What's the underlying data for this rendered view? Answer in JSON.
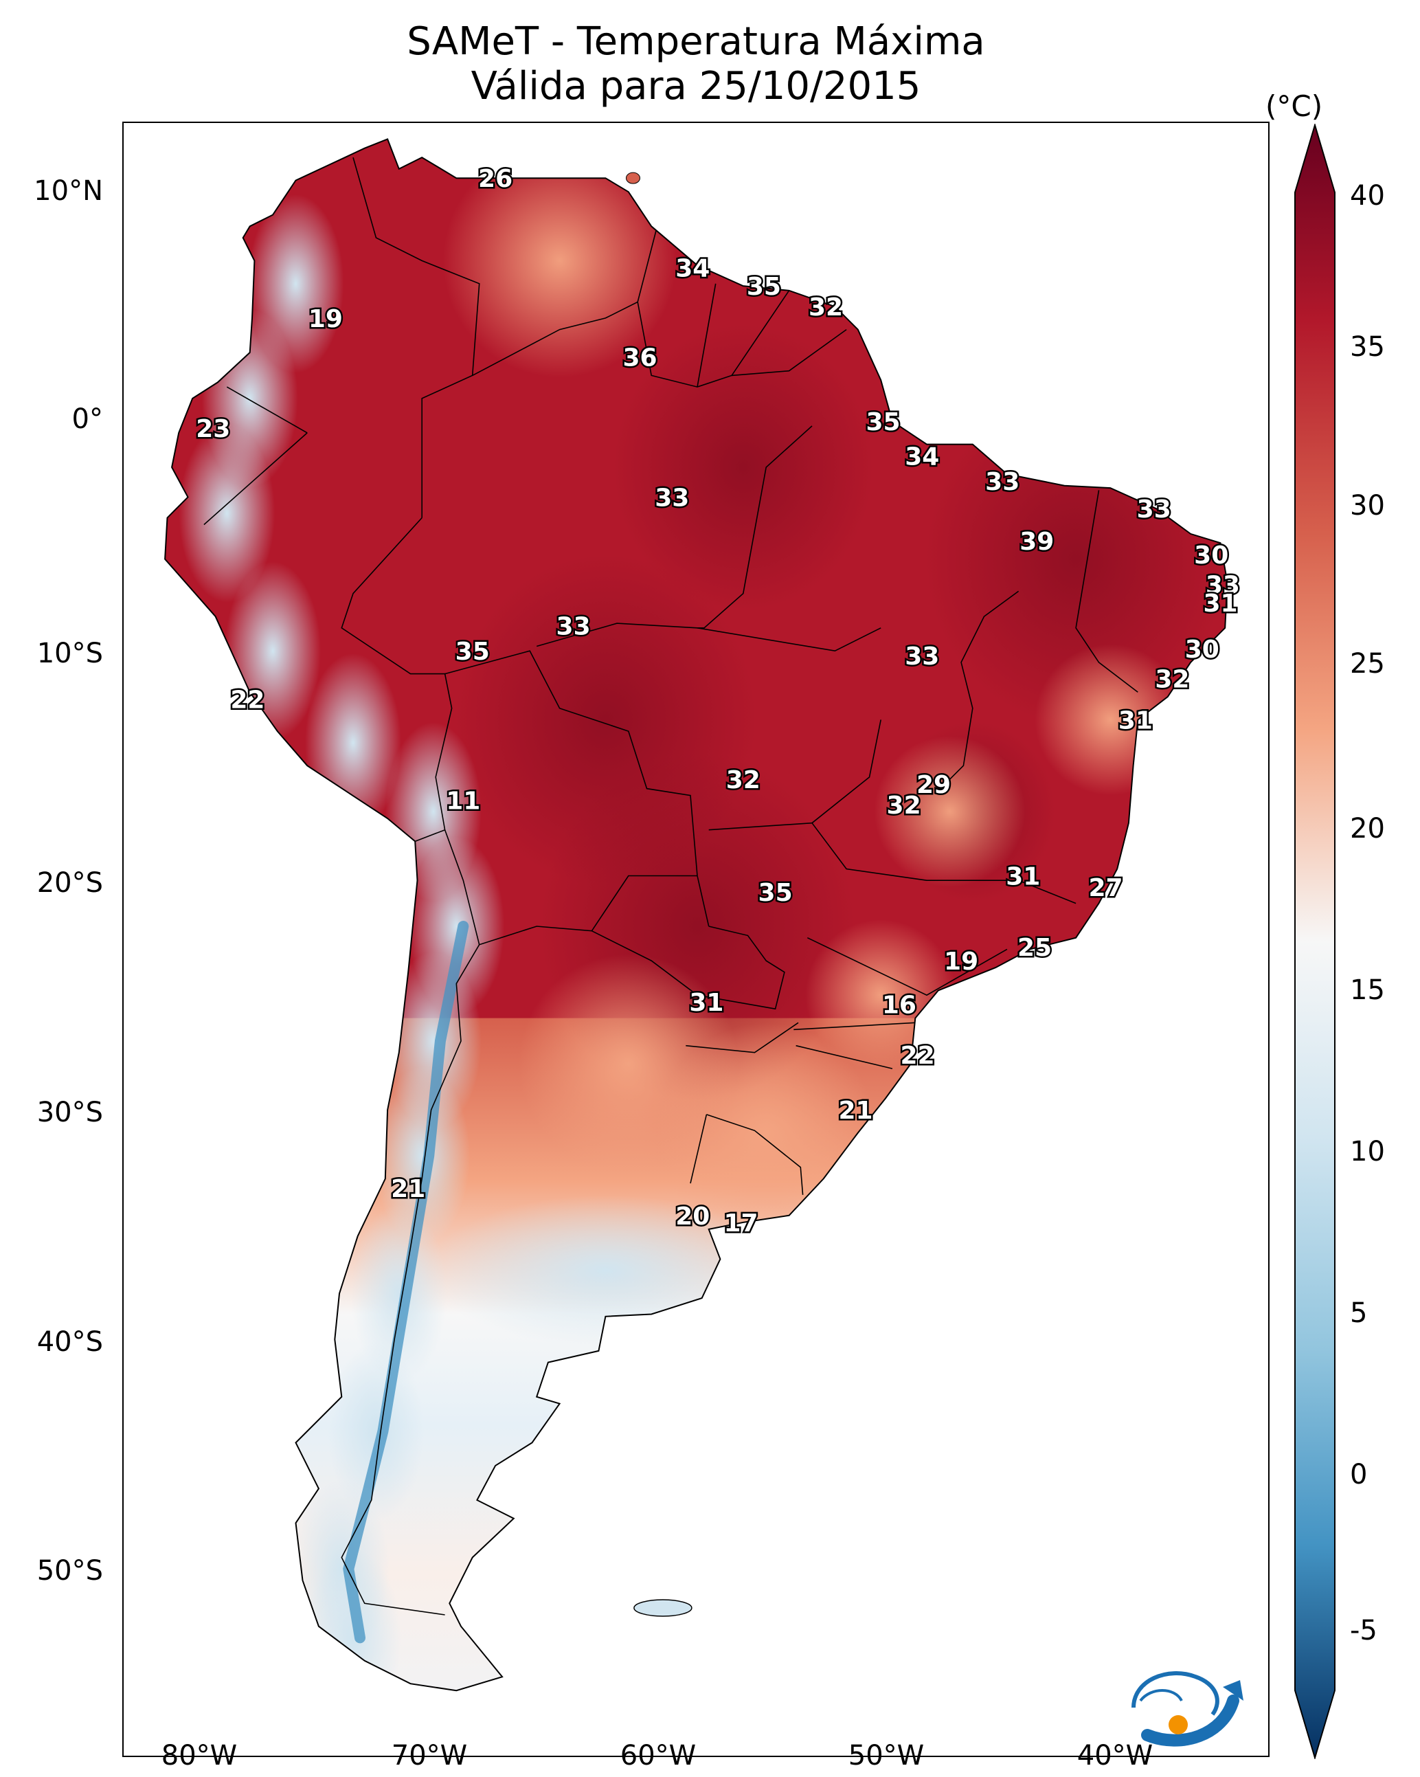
{
  "title_line1": "SAMeT - Temperatura Máxima",
  "title_line2": "Válida para 25/10/2015",
  "colorbar": {
    "unit": "(°C)",
    "ticks": [
      "40",
      "35",
      "30",
      "25",
      "20",
      "15",
      "10",
      "5",
      "0",
      "-5"
    ],
    "range": [
      -5,
      40
    ],
    "colormap": "RdBu_r"
  },
  "axes": {
    "lat_ticks": [
      "10°N",
      "0°",
      "10°S",
      "20°S",
      "30°S",
      "40°S",
      "50°S"
    ],
    "lon_ticks": [
      "80°W",
      "70°W",
      "60°W",
      "50°W",
      "40°W"
    ],
    "lon_range": [
      -83,
      -33
    ],
    "lat_range": [
      -56,
      13
    ]
  },
  "colors": {
    "very_hot": "#67001f",
    "hot": "#b2182b",
    "warm": "#d6604d",
    "mild": "#f4a582",
    "neutral": "#f7f7f7",
    "cool": "#d1e5f0",
    "cold": "#92c5de",
    "very_cold": "#2166ac"
  },
  "station_labels": [
    {
      "text": "26",
      "lon": -66.8,
      "lat": 10.6
    },
    {
      "text": "19",
      "lon": -74.2,
      "lat": 4.5
    },
    {
      "text": "23",
      "lon": -79.1,
      "lat": -0.3
    },
    {
      "text": "34",
      "lon": -58.2,
      "lat": 6.7
    },
    {
      "text": "35",
      "lon": -55.1,
      "lat": 5.9
    },
    {
      "text": "32",
      "lon": -52.4,
      "lat": 5.0
    },
    {
      "text": "36",
      "lon": -60.5,
      "lat": 2.8
    },
    {
      "text": "35",
      "lon": -49.9,
      "lat": 0.0
    },
    {
      "text": "34",
      "lon": -48.2,
      "lat": -1.5
    },
    {
      "text": "33",
      "lon": -44.7,
      "lat": -2.6
    },
    {
      "text": "33",
      "lon": -59.1,
      "lat": -3.3
    },
    {
      "text": "33",
      "lon": -38.1,
      "lat": -3.8
    },
    {
      "text": "39",
      "lon": -43.2,
      "lat": -5.2
    },
    {
      "text": "30",
      "lon": -35.6,
      "lat": -5.8
    },
    {
      "text": "33",
      "lon": -35.1,
      "lat": -7.1
    },
    {
      "text": "31",
      "lon": -35.2,
      "lat": -7.9
    },
    {
      "text": "33",
      "lon": -63.4,
      "lat": -8.9
    },
    {
      "text": "35",
      "lon": -67.8,
      "lat": -10.0
    },
    {
      "text": "33",
      "lon": -48.2,
      "lat": -10.2
    },
    {
      "text": "30",
      "lon": -36.0,
      "lat": -9.9
    },
    {
      "text": "32",
      "lon": -37.3,
      "lat": -11.2
    },
    {
      "text": "22",
      "lon": -77.6,
      "lat": -12.1
    },
    {
      "text": "31",
      "lon": -38.9,
      "lat": -13.0
    },
    {
      "text": "29",
      "lon": -47.7,
      "lat": -15.8
    },
    {
      "text": "32",
      "lon": -56.0,
      "lat": -15.6
    },
    {
      "text": "32",
      "lon": -49.0,
      "lat": -16.7
    },
    {
      "text": "11",
      "lon": -68.2,
      "lat": -16.5
    },
    {
      "text": "31",
      "lon": -43.8,
      "lat": -19.8
    },
    {
      "text": "27",
      "lon": -40.2,
      "lat": -20.3
    },
    {
      "text": "35",
      "lon": -54.6,
      "lat": -20.5
    },
    {
      "text": "25",
      "lon": -43.3,
      "lat": -22.9
    },
    {
      "text": "19",
      "lon": -46.5,
      "lat": -23.5
    },
    {
      "text": "31",
      "lon": -57.6,
      "lat": -25.3
    },
    {
      "text": "16",
      "lon": -49.2,
      "lat": -25.4
    },
    {
      "text": "22",
      "lon": -48.4,
      "lat": -27.6
    },
    {
      "text": "21",
      "lon": -51.1,
      "lat": -30.0
    },
    {
      "text": "21",
      "lon": -70.6,
      "lat": -33.4
    },
    {
      "text": "20",
      "lon": -58.2,
      "lat": -34.6
    },
    {
      "text": "17",
      "lon": -56.1,
      "lat": -34.9
    }
  ]
}
